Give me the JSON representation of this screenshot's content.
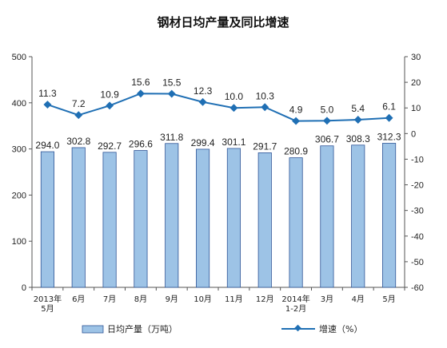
{
  "chart_data": {
    "type": "bar+line",
    "title": "钢材日均产量及同比增速",
    "categories": [
      [
        "2013年",
        "5月"
      ],
      [
        "6月"
      ],
      [
        "7月"
      ],
      [
        "8月"
      ],
      [
        "9月"
      ],
      [
        "10月"
      ],
      [
        "11月"
      ],
      [
        "12月"
      ],
      [
        "2014年",
        "1-2月"
      ],
      [
        "3月"
      ],
      [
        "4月"
      ],
      [
        "5月"
      ]
    ],
    "series": [
      {
        "name": "日均产量（万吨）",
        "type": "bar",
        "axis": "left",
        "values": [
          294.0,
          302.8,
          292.7,
          296.6,
          311.8,
          299.4,
          301.1,
          291.7,
          280.9,
          306.7,
          308.3,
          312.3
        ],
        "labels": [
          "294.0",
          "302.8",
          "292.7",
          "296.6",
          "311.8",
          "299.4",
          "301.1",
          "291.7",
          "280.9",
          "306.7",
          "308.3",
          "312.3"
        ],
        "color": "#9dc3e6",
        "stroke": "#2f5597"
      },
      {
        "name": "增速（%）",
        "type": "line",
        "axis": "right",
        "values": [
          11.3,
          7.2,
          10.9,
          15.6,
          15.5,
          12.3,
          10.0,
          10.3,
          4.9,
          5.0,
          5.4,
          6.1
        ],
        "labels": [
          "11.3",
          "7.2",
          "10.9",
          "15.6",
          "15.5",
          "12.3",
          "10.0",
          "10.3",
          "4.9",
          "5.0",
          "5.4",
          "6.1"
        ],
        "color": "#1f6fb4"
      }
    ],
    "y_left": {
      "range": [
        0,
        500
      ],
      "ticks": [
        0,
        100,
        200,
        300,
        400,
        500
      ]
    },
    "y_right": {
      "range": [
        -60,
        30
      ],
      "ticks": [
        30,
        20,
        10,
        0,
        -10,
        -20,
        -30,
        -40,
        -50,
        -60
      ]
    },
    "grid": false,
    "legend_position": "bottom"
  }
}
